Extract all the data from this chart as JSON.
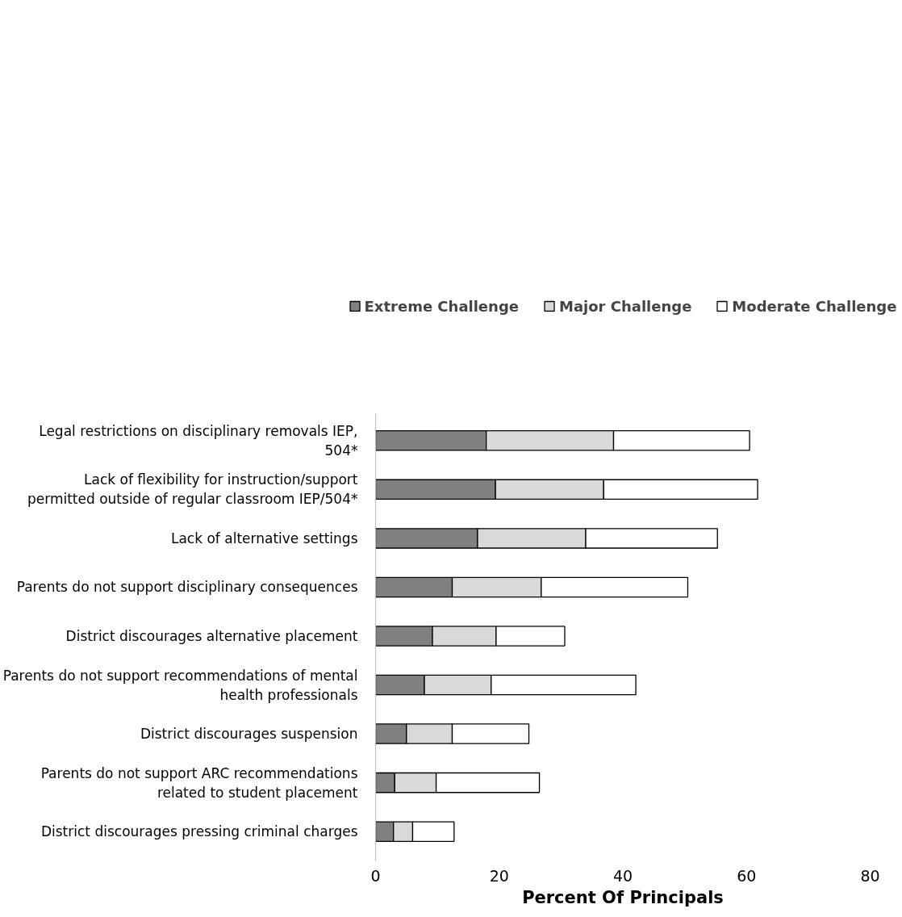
{
  "chart_data": {
    "type": "bar",
    "orientation": "horizontal",
    "stacked": true,
    "categories": [
      "Legal restrictions on disciplinary removals IEP, 504*",
      "Lack of flexibility for instruction/support permitted outside of regular classroom IEP/504*",
      "Lack of alternative settings",
      "Parents do not support disciplinary consequences",
      "District discourages alternative placement",
      "Parents do not support recommendations of mental health professionals",
      "District discourages suspension",
      "Parents do not support ARC recommendations related to student placement",
      "District discourages pressing criminal charges"
    ],
    "series": [
      {
        "name": "Extreme Challenge",
        "color": "#808080",
        "values": [
          17.9,
          19.4,
          16.5,
          12.4,
          9.2,
          7.9,
          5.0,
          3.1,
          2.9
        ]
      },
      {
        "name": "Major Challenge",
        "color": "#d9d9d9",
        "values": [
          20.6,
          17.5,
          17.5,
          14.4,
          10.3,
          10.8,
          7.4,
          6.7,
          3.1
        ]
      },
      {
        "name": "Moderate Challenge",
        "color": "#ffffff",
        "values": [
          22.0,
          24.9,
          21.3,
          23.7,
          11.1,
          23.4,
          12.4,
          16.7,
          6.7
        ]
      }
    ],
    "xlim": [
      0,
      80
    ],
    "xticks": [
      0,
      20,
      40,
      60,
      80
    ],
    "xlabel": "Percent Of Principals",
    "legend": "top",
    "grid": false
  }
}
